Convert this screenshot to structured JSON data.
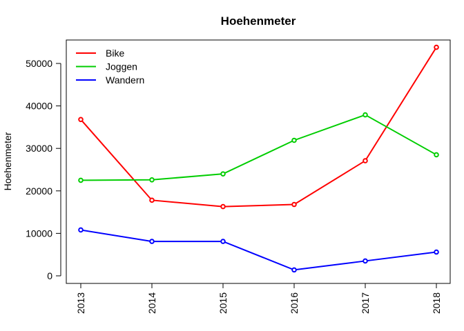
{
  "chart_data": {
    "type": "line",
    "title": "Hoehenmeter",
    "xlabel": "",
    "ylabel": "Hoehenmeter",
    "x": [
      "2013",
      "2014",
      "2015",
      "2016",
      "2017",
      "2018"
    ],
    "xlim": [
      2013,
      2018
    ],
    "ylim": [
      0,
      50000
    ],
    "y_ticks": [
      "0",
      "10000",
      "20000",
      "30000",
      "40000",
      "50000"
    ],
    "grid": false,
    "legend_position": "top-left",
    "series": [
      {
        "name": "Bike",
        "color": "#ff0000",
        "values": [
          36800,
          17800,
          16300,
          16800,
          27100,
          53800
        ]
      },
      {
        "name": "Joggen",
        "color": "#00cd00",
        "values": [
          22500,
          22600,
          24000,
          31900,
          37900,
          28500
        ]
      },
      {
        "name": "Wandern",
        "color": "#0000ff",
        "values": [
          10800,
          8100,
          8100,
          1400,
          3500,
          5600
        ]
      }
    ]
  }
}
